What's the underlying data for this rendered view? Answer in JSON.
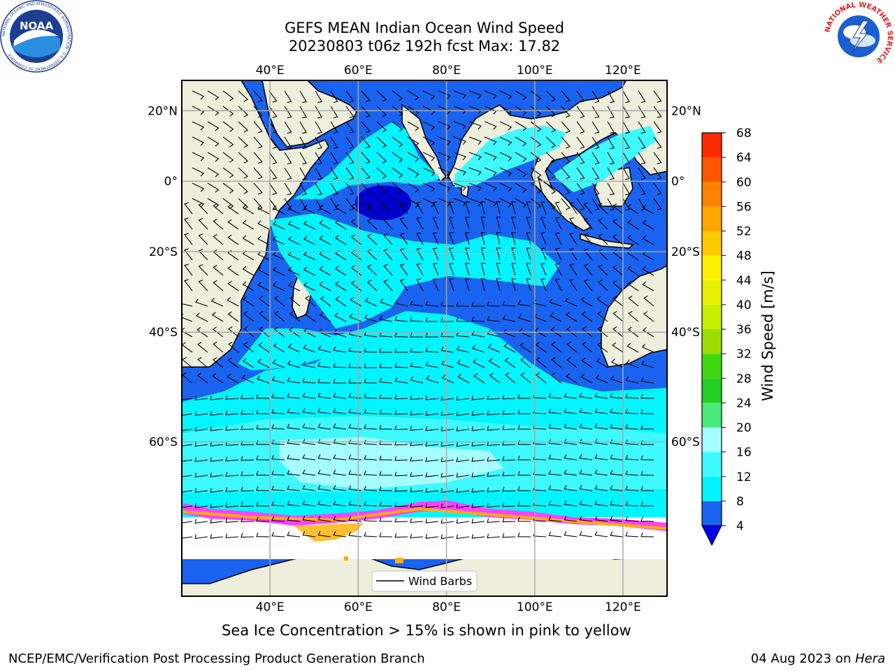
{
  "title": {
    "line1": "GEFS MEAN Indian Ocean Wind Speed",
    "line2": "20230803 t06z 192h fcst   Max: 17.82"
  },
  "logos": {
    "left": {
      "name": "noaa-logo",
      "text": "NOAA",
      "ring_text": "NATIONAL OCEANIC AND ATMOSPHERIC ADMINISTRATION · U.S. DEPARTMENT OF COMMERCE"
    },
    "right": {
      "name": "nws-logo",
      "ring_text": "NATIONAL WEATHER SERVICE"
    }
  },
  "map": {
    "lon_ticks": [
      "40°E",
      "60°E",
      "80°E",
      "100°E",
      "120°E"
    ],
    "lat_ticks_left": [
      "20°N",
      "0°",
      "20°S",
      "40°S",
      "60°S"
    ],
    "lat_ticks_right": [
      "20°N",
      "0°",
      "20°S",
      "40°S",
      "60°S"
    ],
    "lon_values": [
      40,
      60,
      80,
      100,
      120
    ],
    "lat_values": [
      20,
      0,
      -20,
      -40,
      -60
    ],
    "extent": {
      "lon_min": 20,
      "lon_max": 130,
      "lat_min": -76,
      "lat_max": 28
    },
    "legend_label": "Wind Barbs"
  },
  "colorbar": {
    "label": "Wind Speed [m/s]",
    "ticks": [
      "4",
      "8",
      "12",
      "16",
      "20",
      "24",
      "28",
      "32",
      "36",
      "40",
      "44",
      "48",
      "52",
      "56",
      "60",
      "64",
      "68"
    ],
    "colors": [
      "#1a63f0",
      "#00f5ff",
      "#3ef9ff",
      "#a6fdfd",
      "#4ae97c",
      "#23d023",
      "#40d810",
      "#9ddc00",
      "#c6f000",
      "#e6f000",
      "#fff200",
      "#ffc800",
      "#ffa500",
      "#ff8200",
      "#ff5500",
      "#ff2b00",
      "#ff0000"
    ]
  },
  "colors": {
    "land": "#eeeedc",
    "sea_dark": "#1a63f0",
    "sea_deep": "#0000d0",
    "sea_cyan": "#00f5ff",
    "sea_light": "#3ef9ff",
    "sea_pale": "#a6fdfd",
    "ice": "#ff40ff"
  },
  "footer": {
    "subtitle": "Sea Ice Concentration > 15% is shown in pink to yellow",
    "credit": "NCEP/EMC/Verification Post Processing Product Generation Branch",
    "date": "04 Aug 2023 on ",
    "host": "Hera"
  }
}
